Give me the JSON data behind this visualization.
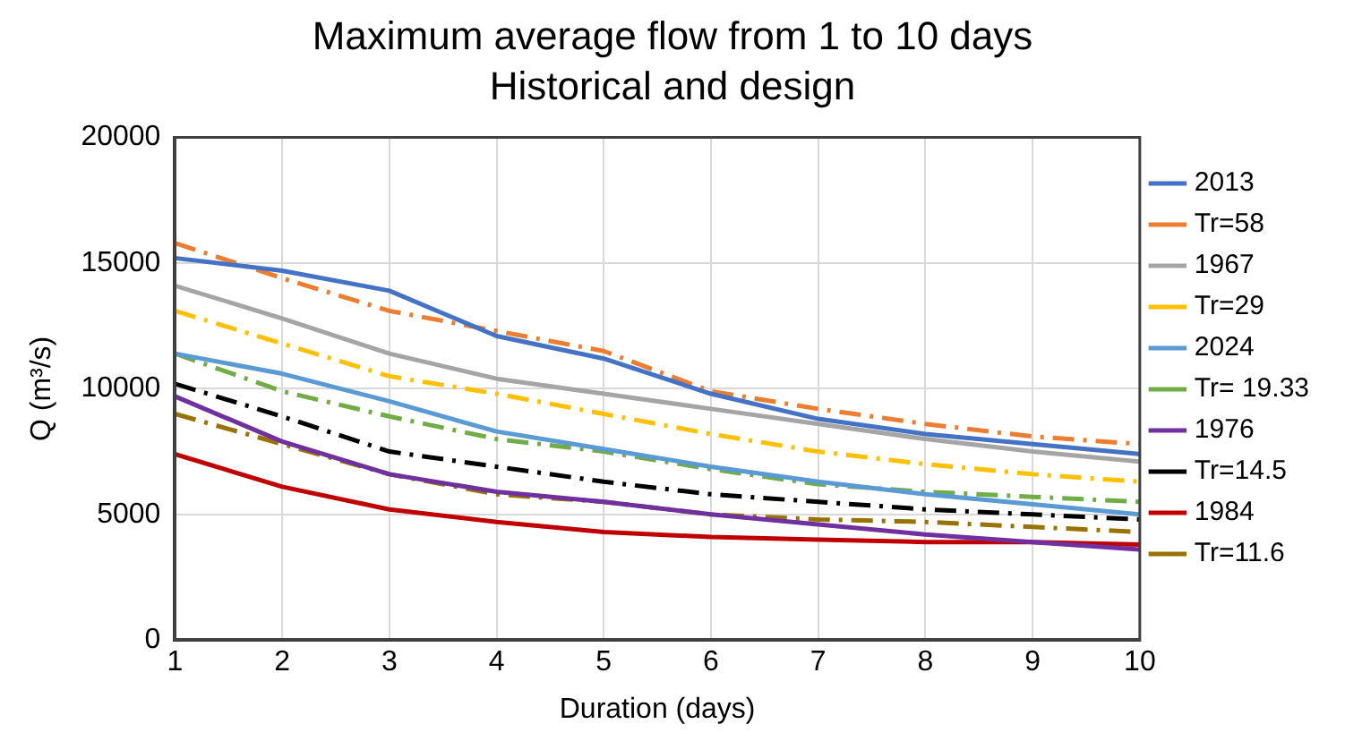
{
  "chart_data": {
    "type": "line",
    "title": "Maximum average flow from 1 to 10 days",
    "subtitle": "Historical and design",
    "xlabel": "Duration (days)",
    "ylabel": "Q (m³/s)",
    "x": [
      1,
      2,
      3,
      4,
      5,
      6,
      7,
      8,
      9,
      10
    ],
    "xlim": [
      1,
      10
    ],
    "xticks": [
      1,
      2,
      3,
      4,
      5,
      6,
      7,
      8,
      9,
      10
    ],
    "ylim": [
      0,
      20000
    ],
    "yticks": [
      0,
      5000,
      10000,
      15000,
      20000
    ],
    "grid": true,
    "legend": "right",
    "marker": "none",
    "series": [
      {
        "name": "2013",
        "color": "#4472c4",
        "line_style": "solid",
        "values": [
          15200,
          14700,
          13900,
          12100,
          11200,
          9800,
          8800,
          8200,
          7800,
          7400
        ]
      },
      {
        "name": "Tr=58",
        "color": "#ed7d31",
        "line_style": "dashed",
        "values": [
          15800,
          14400,
          13100,
          12300,
          11500,
          9900,
          9200,
          8600,
          8100,
          7800
        ]
      },
      {
        "name": "1967",
        "color": "#a5a5a5",
        "line_style": "solid",
        "values": [
          14100,
          12800,
          11400,
          10400,
          9800,
          9200,
          8600,
          8000,
          7500,
          7100
        ]
      },
      {
        "name": "Tr=29",
        "color": "#ffc000",
        "line_style": "dashed",
        "values": [
          13100,
          11800,
          10500,
          9800,
          9000,
          8200,
          7500,
          7000,
          6600,
          6300
        ]
      },
      {
        "name": "2024",
        "color": "#5b9bd5",
        "line_style": "solid",
        "values": [
          11400,
          10600,
          9500,
          8300,
          7600,
          6900,
          6300,
          5800,
          5400,
          5000
        ]
      },
      {
        "name": "Tr= 19.33",
        "color": "#70ad47",
        "line_style": "dashed",
        "values": [
          11400,
          9900,
          8900,
          8000,
          7500,
          6800,
          6200,
          5900,
          5700,
          5500
        ]
      },
      {
        "name": "1976",
        "color": "#7030a0",
        "line_style": "solid",
        "values": [
          9700,
          7900,
          6600,
          5900,
          5500,
          5000,
          4600,
          4200,
          3900,
          3600
        ]
      },
      {
        "name": "Tr=14.5",
        "color": "#000000",
        "line_style": "dashed",
        "values": [
          10200,
          8900,
          7500,
          6900,
          6300,
          5800,
          5500,
          5200,
          5000,
          4800
        ]
      },
      {
        "name": "1984",
        "color": "#c00000",
        "line_style": "solid",
        "values": [
          7400,
          6100,
          5200,
          4700,
          4300,
          4100,
          4000,
          3900,
          3900,
          3800
        ]
      },
      {
        "name": "Tr=11.6",
        "color": "#997300",
        "line_style": "dashed",
        "values": [
          9000,
          7800,
          6600,
          5800,
          5500,
          5000,
          4800,
          4700,
          4500,
          4300
        ]
      }
    ]
  }
}
